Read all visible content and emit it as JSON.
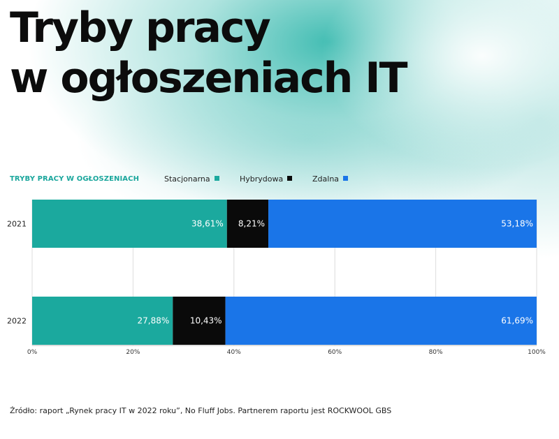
{
  "title_lines": [
    "Tryby pracy",
    "w ogłoszeniach IT"
  ],
  "legend": {
    "title": "TRYBY PRACY W OGŁOSZENIACH",
    "items": [
      {
        "label": "Stacjonarna",
        "color": "#1ba99e"
      },
      {
        "label": "Hybrydowa",
        "color": "#0a0a0a"
      },
      {
        "label": "Zdalna",
        "color": "#1a75e8"
      }
    ]
  },
  "footer": "Źródło: raport „Rynek pracy IT w 2022 roku”, No Fluff Jobs. Partnerem raportu jest ROCKWOOL GBS",
  "chart_data": {
    "type": "bar",
    "orientation": "horizontal",
    "stacked": true,
    "categories": [
      "2021",
      "2022"
    ],
    "series": [
      {
        "name": "Stacjonarna",
        "color": "#1ba99e",
        "values": [
          38.61,
          27.88
        ],
        "labels": [
          "38,61%",
          "27,88%"
        ]
      },
      {
        "name": "Hybrydowa",
        "color": "#0a0a0a",
        "values": [
          8.21,
          10.43
        ],
        "labels": [
          "8,21%",
          "10,43%"
        ]
      },
      {
        "name": "Zdalna",
        "color": "#1a75e8",
        "values": [
          53.18,
          61.69
        ],
        "labels": [
          "53,18%",
          "61,69%"
        ]
      }
    ],
    "xlim": [
      0,
      100
    ],
    "x_ticks": [
      0,
      20,
      40,
      60,
      80,
      100
    ],
    "x_tick_labels": [
      "0%",
      "20%",
      "40%",
      "60%",
      "80%",
      "100%"
    ],
    "grid": true,
    "legend_position": "top"
  }
}
